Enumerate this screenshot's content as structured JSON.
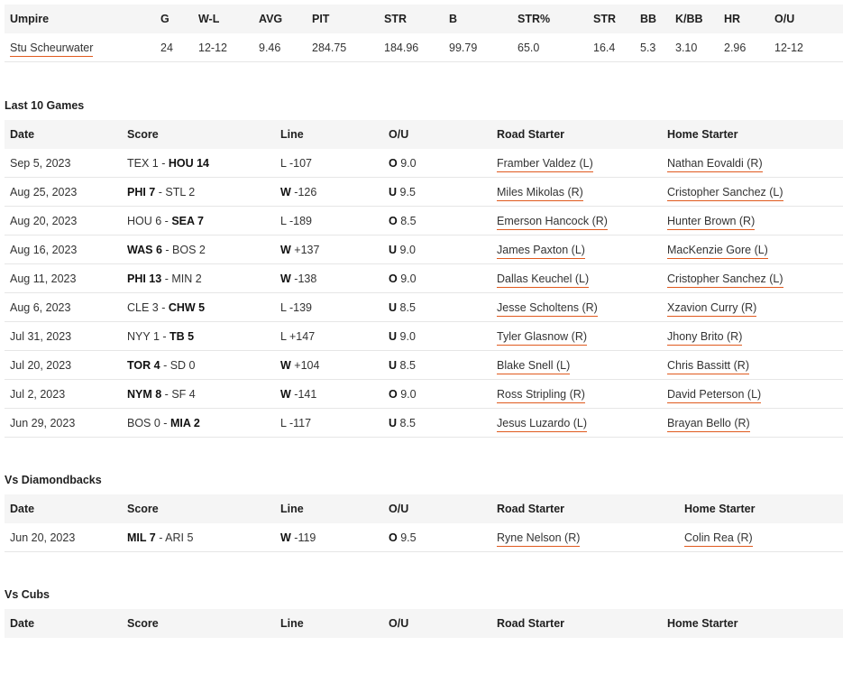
{
  "umpire_table": {
    "headers": [
      "Umpire",
      "G",
      "W-L",
      "AVG",
      "PIT",
      "STR",
      "B",
      "STR%",
      "STR",
      "BB",
      "K/BB",
      "HR",
      "O/U"
    ],
    "row": [
      "Stu Scheurwater",
      "24",
      "12-12",
      "9.46",
      "284.75",
      "184.96",
      "99.79",
      "65.0",
      "16.4",
      "5.3",
      "3.10",
      "2.96",
      "12-12"
    ]
  },
  "last10": {
    "title": "Last 10 Games",
    "headers": [
      "Date",
      "Score",
      "Line",
      "O/U",
      "Road Starter",
      "Home Starter"
    ],
    "rows": [
      {
        "date": "Sep 5, 2023",
        "s1": "TEX 1",
        "s2": "HOU 14",
        "win": 2,
        "lr": "L",
        "lv": "-107",
        "ou": "O",
        "ouv": "9.0",
        "road": "Framber Valdez (L)",
        "home": "Nathan Eovaldi (R)"
      },
      {
        "date": "Aug 25, 2023",
        "s1": "PHI 7",
        "s2": "STL 2",
        "win": 1,
        "lr": "W",
        "lv": "-126",
        "ou": "U",
        "ouv": "9.5",
        "road": "Miles Mikolas (R)",
        "home": "Cristopher Sanchez (L)"
      },
      {
        "date": "Aug 20, 2023",
        "s1": "HOU 6",
        "s2": "SEA 7",
        "win": 2,
        "lr": "L",
        "lv": "-189",
        "ou": "O",
        "ouv": "8.5",
        "road": "Emerson Hancock (R)",
        "home": "Hunter Brown (R)"
      },
      {
        "date": "Aug 16, 2023",
        "s1": "WAS 6",
        "s2": "BOS 2",
        "win": 1,
        "lr": "W",
        "lv": "+137",
        "ou": "U",
        "ouv": "9.0",
        "road": "James Paxton (L)",
        "home": "MacKenzie Gore (L)"
      },
      {
        "date": "Aug 11, 2023",
        "s1": "PHI 13",
        "s2": "MIN 2",
        "win": 1,
        "lr": "W",
        "lv": "-138",
        "ou": "O",
        "ouv": "9.0",
        "road": "Dallas Keuchel (L)",
        "home": "Cristopher Sanchez (L)"
      },
      {
        "date": "Aug 6, 2023",
        "s1": "CLE 3",
        "s2": "CHW 5",
        "win": 2,
        "lr": "L",
        "lv": "-139",
        "ou": "U",
        "ouv": "8.5",
        "road": "Jesse Scholtens (R)",
        "home": "Xzavion Curry (R)"
      },
      {
        "date": "Jul 31, 2023",
        "s1": "NYY 1",
        "s2": "TB 5",
        "win": 2,
        "lr": "L",
        "lv": "+147",
        "ou": "U",
        "ouv": "9.0",
        "road": "Tyler Glasnow (R)",
        "home": "Jhony Brito (R)"
      },
      {
        "date": "Jul 20, 2023",
        "s1": "TOR 4",
        "s2": "SD 0",
        "win": 1,
        "lr": "W",
        "lv": "+104",
        "ou": "U",
        "ouv": "8.5",
        "road": "Blake Snell (L)",
        "home": "Chris Bassitt (R)"
      },
      {
        "date": "Jul 2, 2023",
        "s1": "NYM 8",
        "s2": "SF 4",
        "win": 1,
        "lr": "W",
        "lv": "-141",
        "ou": "O",
        "ouv": "9.0",
        "road": "Ross Stripling (R)",
        "home": "David Peterson (L)"
      },
      {
        "date": "Jun 29, 2023",
        "s1": "BOS 0",
        "s2": "MIA 2",
        "win": 2,
        "lr": "L",
        "lv": "-117",
        "ou": "U",
        "ouv": "8.5",
        "road": "Jesus Luzardo (L)",
        "home": "Brayan Bello (R)"
      }
    ]
  },
  "vs_dbacks": {
    "title": "Vs Diamondbacks",
    "headers": [
      "Date",
      "Score",
      "Line",
      "O/U",
      "Road Starter",
      "Home Starter"
    ],
    "rows": [
      {
        "date": "Jun 20, 2023",
        "s1": "MIL 7",
        "s2": "ARI 5",
        "win": 1,
        "lr": "W",
        "lv": "-119",
        "ou": "O",
        "ouv": "9.5",
        "road": "Ryne Nelson (R)",
        "home": "Colin Rea (R)"
      }
    ]
  },
  "vs_cubs": {
    "title": "Vs Cubs",
    "headers": [
      "Date",
      "Score",
      "Line",
      "O/U",
      "Road Starter",
      "Home Starter"
    ],
    "rows": []
  },
  "colors": {
    "link_underline": "#e05a1e",
    "header_bg": "#f5f5f5",
    "row_border": "#e6e6e6"
  }
}
